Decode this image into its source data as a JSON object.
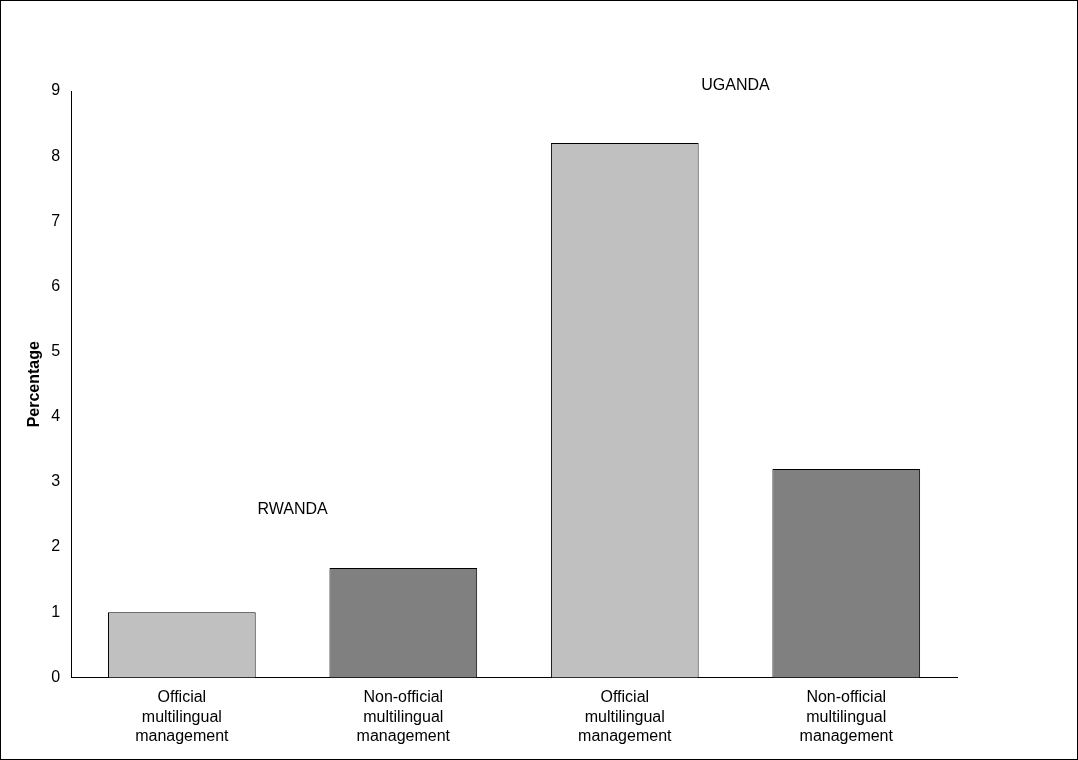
{
  "chart_data": {
    "type": "bar",
    "ylabel": "Percentage",
    "categories": [
      "Official multilingual management",
      "Non-official multilingual management",
      "Official multilingual management",
      "Non-official multilingual management"
    ],
    "values": [
      1.0,
      1.68,
      8.2,
      3.2
    ],
    "colors": [
      "#c0c0c0",
      "#808080",
      "#c0c0c0",
      "#808080"
    ],
    "ylim": [
      0,
      9
    ],
    "yticks": [
      0,
      1,
      2,
      3,
      4,
      5,
      6,
      7,
      8,
      9
    ],
    "annotations": [
      "RWANDA",
      "UGANDA"
    ],
    "grid": false,
    "legend": false
  }
}
